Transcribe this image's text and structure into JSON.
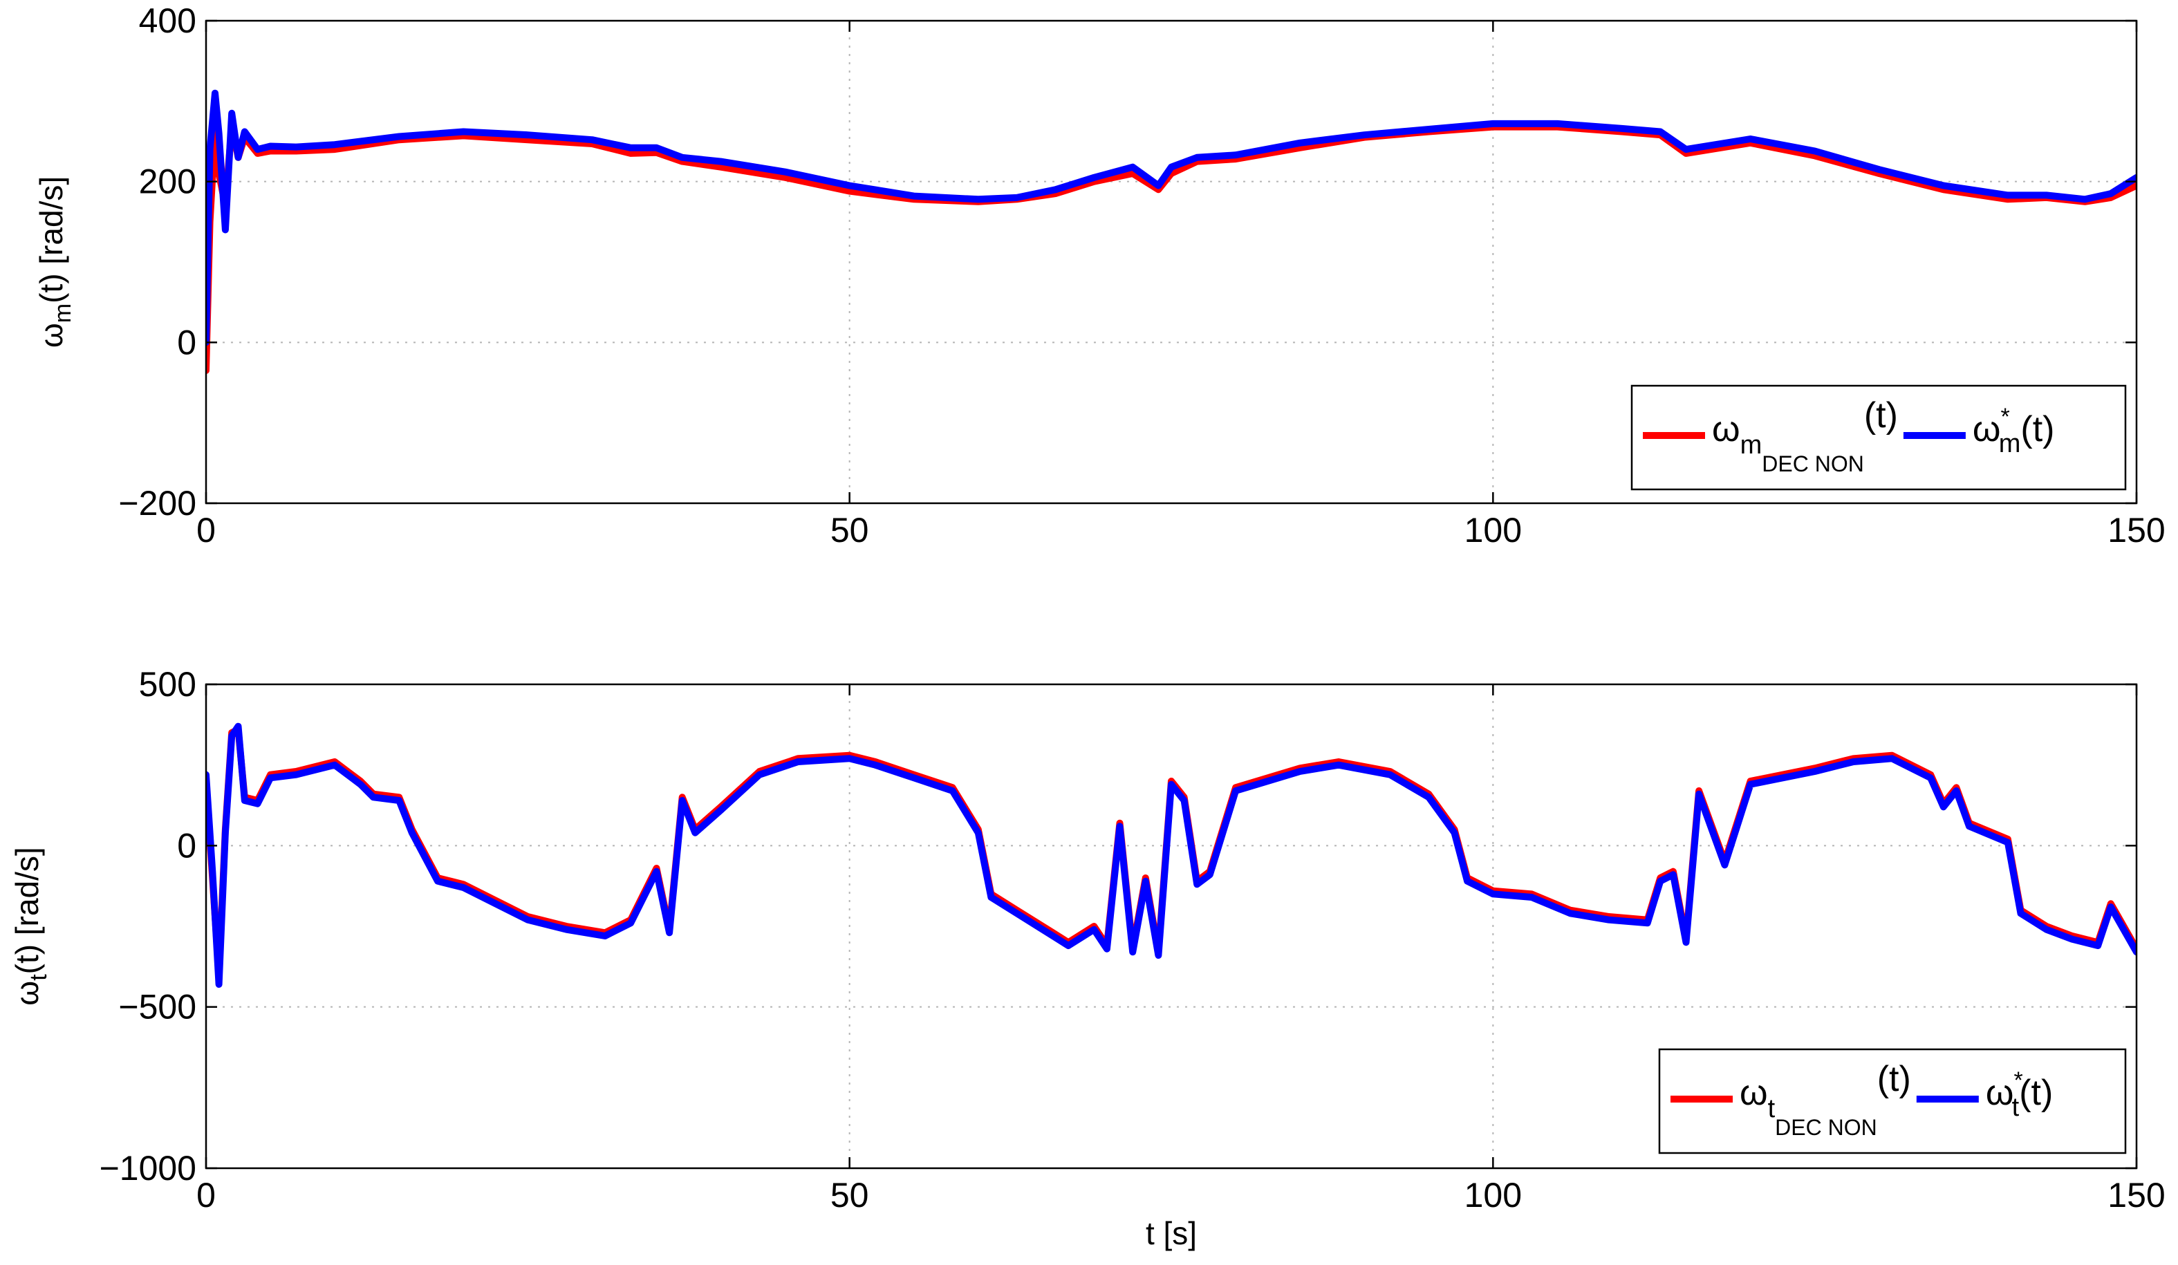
{
  "chart_data": [
    {
      "type": "line",
      "title": "",
      "xlabel": "",
      "ylabel": {
        "sym": "ω",
        "sub": "m",
        "rest": "(t) [rad/s]"
      },
      "xlim": [
        0,
        150
      ],
      "ylim": [
        -200,
        400
      ],
      "xticks": [
        0,
        50,
        100,
        150
      ],
      "yticks": [
        -200,
        0,
        200,
        400
      ],
      "grid": true,
      "legend_position": "bottom-right",
      "legend": [
        {
          "sym": "ω",
          "sub": "m",
          "subsub": "DEC NON",
          "rest": "(t)",
          "color": "#ff0000"
        },
        {
          "sym": "ω",
          "sub": "m",
          "sup": "*",
          "rest": "(t)",
          "color": "#0000ff"
        }
      ],
      "series": [
        {
          "color": "#ff0000",
          "x": [
            0,
            0.3,
            0.7,
            1,
            1.5,
            2,
            2.5,
            3,
            4,
            5,
            7,
            10,
            15,
            20,
            25,
            30,
            33,
            35,
            37,
            40,
            45,
            50,
            55,
            60,
            63,
            66,
            69,
            72,
            74,
            75,
            77,
            80,
            85,
            90,
            95,
            100,
            105,
            110,
            113,
            115,
            120,
            125,
            130,
            135,
            140,
            143,
            146,
            148,
            150
          ],
          "y": [
            -35,
            150,
            260,
            210,
            170,
            270,
            230,
            255,
            235,
            238,
            238,
            240,
            252,
            257,
            252,
            247,
            235,
            236,
            225,
            218,
            205,
            188,
            178,
            175,
            178,
            185,
            200,
            210,
            190,
            210,
            225,
            228,
            242,
            255,
            262,
            268,
            268,
            262,
            258,
            235,
            248,
            232,
            210,
            190,
            178,
            180,
            175,
            180,
            195
          ]
        },
        {
          "color": "#0000ff",
          "x": [
            0,
            0.3,
            0.7,
            1,
            1.5,
            2,
            2.5,
            3,
            4,
            5,
            7,
            10,
            15,
            20,
            25,
            30,
            33,
            35,
            37,
            40,
            45,
            50,
            55,
            60,
            63,
            66,
            69,
            72,
            74,
            75,
            77,
            80,
            85,
            90,
            95,
            100,
            105,
            110,
            113,
            115,
            120,
            125,
            130,
            135,
            140,
            143,
            146,
            148,
            150
          ],
          "y": [
            0,
            240,
            310,
            260,
            140,
            285,
            230,
            262,
            240,
            244,
            243,
            246,
            256,
            262,
            258,
            252,
            242,
            242,
            230,
            225,
            212,
            195,
            182,
            178,
            180,
            190,
            205,
            218,
            195,
            218,
            230,
            233,
            248,
            258,
            265,
            272,
            272,
            266,
            262,
            240,
            253,
            238,
            215,
            195,
            183,
            183,
            178,
            185,
            205
          ]
        }
      ]
    },
    {
      "type": "line",
      "title": "",
      "xlabel": "t [s]",
      "ylabel": {
        "sym": "ω",
        "sub": "t",
        "rest": "(t) [rad/s]"
      },
      "xlim": [
        0,
        150
      ],
      "ylim": [
        -1000,
        500
      ],
      "xticks": [
        0,
        50,
        100,
        150
      ],
      "yticks": [
        -1000,
        -500,
        0,
        500
      ],
      "grid": true,
      "legend_position": "bottom-right",
      "legend": [
        {
          "sym": "ω",
          "sub": "t",
          "subsub": "DEC NON",
          "rest": "(t)",
          "color": "#ff0000"
        },
        {
          "sym": "ω",
          "sub": "t",
          "sup": "*",
          "rest": "(t)",
          "color": "#0000ff"
        }
      ],
      "series": [
        {
          "color": "#ff0000",
          "x": [
            0,
            0.5,
            1,
            1.5,
            2,
            2.5,
            3,
            4,
            5,
            7,
            10,
            12,
            13,
            15,
            16,
            18,
            20,
            23,
            25,
            28,
            31,
            33,
            35,
            36,
            37,
            38,
            40,
            43,
            46,
            50,
            52,
            55,
            58,
            60,
            61,
            63,
            65,
            67,
            69,
            70,
            71,
            72,
            73,
            74,
            75,
            76,
            77,
            78,
            80,
            85,
            88,
            92,
            95,
            97,
            98,
            100,
            103,
            106,
            109,
            112,
            113,
            114,
            115,
            116,
            118,
            120,
            125,
            128,
            131,
            134,
            135,
            136,
            137,
            140,
            141,
            143,
            145,
            147,
            148,
            149,
            150
          ],
          "y": [
            200,
            -100,
            -400,
            50,
            350,
            360,
            150,
            140,
            220,
            230,
            260,
            200,
            160,
            150,
            50,
            -100,
            -120,
            -180,
            -220,
            -250,
            -270,
            -230,
            -70,
            -260,
            150,
            50,
            120,
            230,
            270,
            280,
            260,
            220,
            180,
            50,
            -150,
            -200,
            -250,
            -300,
            -250,
            -310,
            70,
            -320,
            -100,
            -330,
            200,
            150,
            -110,
            -80,
            180,
            240,
            260,
            230,
            160,
            50,
            -100,
            -140,
            -150,
            -200,
            -220,
            -230,
            -100,
            -80,
            -290,
            170,
            -50,
            200,
            240,
            270,
            280,
            220,
            130,
            180,
            70,
            20,
            -200,
            -250,
            -280,
            -300,
            -180,
            -250,
            -320
          ]
        },
        {
          "color": "#0000ff",
          "x": [
            0,
            0.5,
            1,
            1.5,
            2,
            2.5,
            3,
            4,
            5,
            7,
            10,
            12,
            13,
            15,
            16,
            18,
            20,
            23,
            25,
            28,
            31,
            33,
            35,
            36,
            37,
            38,
            40,
            43,
            46,
            50,
            52,
            55,
            58,
            60,
            61,
            63,
            65,
            67,
            69,
            70,
            71,
            72,
            73,
            74,
            75,
            76,
            77,
            78,
            80,
            85,
            88,
            92,
            95,
            97,
            98,
            100,
            103,
            106,
            109,
            112,
            113,
            114,
            115,
            116,
            118,
            120,
            125,
            128,
            131,
            134,
            135,
            136,
            137,
            140,
            141,
            143,
            145,
            147,
            148,
            149,
            150
          ],
          "y": [
            220,
            -80,
            -430,
            40,
            340,
            370,
            140,
            130,
            210,
            220,
            250,
            190,
            150,
            140,
            40,
            -110,
            -130,
            -190,
            -230,
            -260,
            -280,
            -240,
            -80,
            -270,
            140,
            40,
            110,
            220,
            260,
            270,
            250,
            210,
            170,
            40,
            -160,
            -210,
            -260,
            -310,
            -260,
            -320,
            60,
            -330,
            -110,
            -340,
            190,
            140,
            -120,
            -90,
            170,
            230,
            250,
            220,
            150,
            40,
            -110,
            -150,
            -160,
            -210,
            -230,
            -240,
            -110,
            -90,
            -300,
            160,
            -60,
            190,
            230,
            260,
            270,
            210,
            120,
            170,
            60,
            10,
            -210,
            -260,
            -290,
            -310,
            -190,
            -260,
            -330
          ]
        }
      ]
    }
  ]
}
